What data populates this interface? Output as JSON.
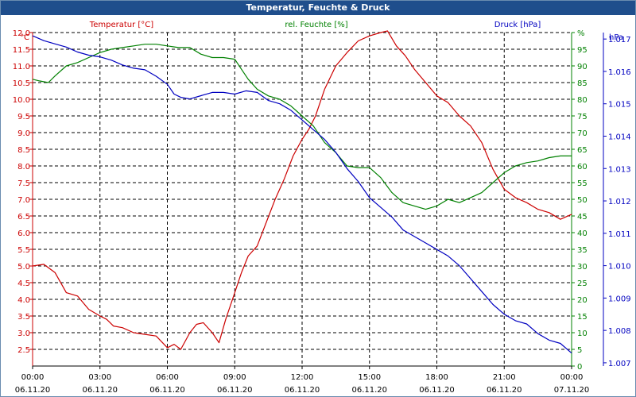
{
  "window": {
    "title": "Temperatur, Feuchte & Druck"
  },
  "chart_data": {
    "type": "line",
    "title": "Temperatur, Feuchte & Druck",
    "x": {
      "range_hours": [
        0,
        24
      ],
      "ticks": [
        {
          "h": 0,
          "time": "00:00",
          "date": "06.11.20"
        },
        {
          "h": 3,
          "time": "03:00",
          "date": "06.11.20"
        },
        {
          "h": 6,
          "time": "06:00",
          "date": "06.11.20"
        },
        {
          "h": 9,
          "time": "09:00",
          "date": "06.11.20"
        },
        {
          "h": 12,
          "time": "12:00",
          "date": "06.11.20"
        },
        {
          "h": 15,
          "time": "15:00",
          "date": "06.11.20"
        },
        {
          "h": 18,
          "time": "18:00",
          "date": "06.11.20"
        },
        {
          "h": 21,
          "time": "21:00",
          "date": "06.11.20"
        },
        {
          "h": 24,
          "time": "00:00",
          "date": "07.11.20"
        }
      ]
    },
    "axes": {
      "temperature": {
        "label": "Temperatur [°C]",
        "unit": "°C",
        "range": [
          2.0,
          12.0
        ],
        "color": "#cc0000",
        "ticks": [
          "2.5",
          "3.0",
          "3.5",
          "4.0",
          "4.5",
          "5.0",
          "5.5",
          "6.0",
          "6.5",
          "7.0",
          "7.5",
          "8.0",
          "8.5",
          "9.0",
          "9.5",
          "10.0",
          "10.5",
          "11.0",
          "11.5",
          "12.0"
        ]
      },
      "humidity": {
        "label": "rel. Feuchte [%]",
        "unit": "%",
        "range": [
          0,
          100
        ],
        "color": "#008000",
        "ticks": [
          "0",
          "5",
          "10",
          "15",
          "20",
          "25",
          "30",
          "35",
          "40",
          "45",
          "50",
          "55",
          "60",
          "65",
          "70",
          "75",
          "80",
          "85",
          "90",
          "95",
          "%"
        ]
      },
      "pressure": {
        "label": "Druck [hPa]",
        "unit": "hPa",
        "range": [
          1006.9,
          1017.2
        ],
        "color": "#0000c0",
        "ticks": [
          "1.007",
          "1.008",
          "1.009",
          "1.010",
          "1.011",
          "1.012",
          "1.013",
          "1.014",
          "1.015",
          "1.016",
          "1.017"
        ]
      }
    },
    "series": [
      {
        "name": "Temperatur",
        "axis": "temperature",
        "color": "#cc0000",
        "points": [
          [
            0,
            5.0
          ],
          [
            0.5,
            5.05
          ],
          [
            1,
            4.8
          ],
          [
            1.5,
            4.2
          ],
          [
            2,
            4.1
          ],
          [
            2.5,
            3.7
          ],
          [
            3,
            3.5
          ],
          [
            3.3,
            3.4
          ],
          [
            3.6,
            3.2
          ],
          [
            4,
            3.15
          ],
          [
            4.5,
            3.0
          ],
          [
            5,
            2.95
          ],
          [
            5.5,
            2.9
          ],
          [
            6,
            2.55
          ],
          [
            6.3,
            2.65
          ],
          [
            6.6,
            2.5
          ],
          [
            7,
            3.0
          ],
          [
            7.3,
            3.25
          ],
          [
            7.6,
            3.3
          ],
          [
            8,
            3.0
          ],
          [
            8.3,
            2.7
          ],
          [
            8.6,
            3.4
          ],
          [
            9,
            4.2
          ],
          [
            9.3,
            4.8
          ],
          [
            9.6,
            5.3
          ],
          [
            10,
            5.6
          ],
          [
            10.4,
            6.3
          ],
          [
            10.8,
            7.0
          ],
          [
            11.2,
            7.6
          ],
          [
            11.6,
            8.3
          ],
          [
            12,
            8.8
          ],
          [
            12.3,
            9.1
          ],
          [
            12.6,
            9.5
          ],
          [
            13,
            10.3
          ],
          [
            13.5,
            11.0
          ],
          [
            14,
            11.4
          ],
          [
            14.5,
            11.75
          ],
          [
            15,
            11.9
          ],
          [
            15.5,
            12.0
          ],
          [
            15.8,
            12.05
          ],
          [
            16.2,
            11.6
          ],
          [
            16.6,
            11.3
          ],
          [
            17,
            10.9
          ],
          [
            17.5,
            10.5
          ],
          [
            18,
            10.1
          ],
          [
            18.5,
            9.9
          ],
          [
            19,
            9.5
          ],
          [
            19.5,
            9.2
          ],
          [
            20,
            8.7
          ],
          [
            20.5,
            7.9
          ],
          [
            21,
            7.3
          ],
          [
            21.5,
            7.05
          ],
          [
            22,
            6.9
          ],
          [
            22.5,
            6.7
          ],
          [
            23,
            6.6
          ],
          [
            23.5,
            6.4
          ],
          [
            24,
            6.55
          ]
        ]
      },
      {
        "name": "rel. Feuchte",
        "axis": "humidity",
        "color": "#008000",
        "points": [
          [
            0,
            86
          ],
          [
            0.3,
            85.5
          ],
          [
            0.7,
            85
          ],
          [
            1,
            87
          ],
          [
            1.5,
            90
          ],
          [
            2,
            91
          ],
          [
            2.5,
            92.5
          ],
          [
            3,
            94
          ],
          [
            3.5,
            95
          ],
          [
            4,
            95.5
          ],
          [
            4.5,
            96
          ],
          [
            5,
            96.5
          ],
          [
            5.5,
            96.5
          ],
          [
            6,
            96
          ],
          [
            6.5,
            95.5
          ],
          [
            7,
            95.5
          ],
          [
            7.5,
            93.5
          ],
          [
            8,
            92.5
          ],
          [
            8.5,
            92.5
          ],
          [
            9,
            92
          ],
          [
            9.3,
            89
          ],
          [
            9.6,
            86
          ],
          [
            10,
            83
          ],
          [
            10.5,
            81
          ],
          [
            11,
            80
          ],
          [
            11.5,
            78
          ],
          [
            12,
            75
          ],
          [
            12.5,
            72
          ],
          [
            13,
            67
          ],
          [
            13.5,
            64
          ],
          [
            14,
            60
          ],
          [
            14.5,
            59.5
          ],
          [
            15,
            59.5
          ],
          [
            15.5,
            56.5
          ],
          [
            16,
            52
          ],
          [
            16.5,
            49
          ],
          [
            17,
            48
          ],
          [
            17.5,
            47
          ],
          [
            18,
            48
          ],
          [
            18.5,
            50
          ],
          [
            19,
            49
          ],
          [
            19.5,
            50.5
          ],
          [
            20,
            52
          ],
          [
            20.5,
            55
          ],
          [
            21,
            58
          ],
          [
            21.5,
            60
          ],
          [
            22,
            61
          ],
          [
            22.5,
            61.5
          ],
          [
            23,
            62.5
          ],
          [
            23.5,
            63
          ],
          [
            24,
            63
          ]
        ]
      },
      {
        "name": "Druck",
        "axis": "pressure",
        "color": "#0000c0",
        "points": [
          [
            0,
            1017.1
          ],
          [
            0.5,
            1016.95
          ],
          [
            1,
            1016.85
          ],
          [
            1.5,
            1016.75
          ],
          [
            2,
            1016.6
          ],
          [
            2.5,
            1016.5
          ],
          [
            3,
            1016.45
          ],
          [
            3.5,
            1016.35
          ],
          [
            4,
            1016.2
          ],
          [
            4.5,
            1016.1
          ],
          [
            5,
            1016.05
          ],
          [
            5.5,
            1015.85
          ],
          [
            6,
            1015.6
          ],
          [
            6.3,
            1015.3
          ],
          [
            6.6,
            1015.2
          ],
          [
            7,
            1015.15
          ],
          [
            7.5,
            1015.25
          ],
          [
            8,
            1015.35
          ],
          [
            8.5,
            1015.35
          ],
          [
            9,
            1015.3
          ],
          [
            9.5,
            1015.4
          ],
          [
            10,
            1015.35
          ],
          [
            10.5,
            1015.1
          ],
          [
            11,
            1015.0
          ],
          [
            11.5,
            1014.8
          ],
          [
            12,
            1014.5
          ],
          [
            12.5,
            1014.2
          ],
          [
            13,
            1013.9
          ],
          [
            13.5,
            1013.5
          ],
          [
            14,
            1013.0
          ],
          [
            14.5,
            1012.6
          ],
          [
            15,
            1012.1
          ],
          [
            15.5,
            1011.8
          ],
          [
            16,
            1011.5
          ],
          [
            16.5,
            1011.1
          ],
          [
            17,
            1010.9
          ],
          [
            17.5,
            1010.7
          ],
          [
            18,
            1010.5
          ],
          [
            18.5,
            1010.3
          ],
          [
            19,
            1010.0
          ],
          [
            19.5,
            1009.6
          ],
          [
            20,
            1009.2
          ],
          [
            20.5,
            1008.8
          ],
          [
            21,
            1008.5
          ],
          [
            21.5,
            1008.3
          ],
          [
            22,
            1008.2
          ],
          [
            22.5,
            1007.9
          ],
          [
            23,
            1007.7
          ],
          [
            23.5,
            1007.6
          ],
          [
            24,
            1007.3
          ]
        ]
      }
    ],
    "grid": true
  }
}
